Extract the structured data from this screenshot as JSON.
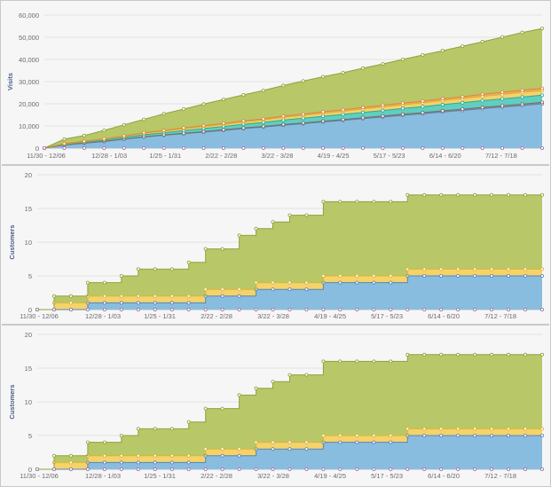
{
  "colors": {
    "base": "#89bde0",
    "base_line": "#5a84b0",
    "l2": "#9b8a86",
    "l2_line": "#7d6b66",
    "l3": "#5fcfc0",
    "l3_line": "#30a898",
    "l4": "#f5d36a",
    "l4_line": "#d8b43a",
    "l5": "#f4a85b",
    "l5_line": "#d9883a",
    "top": "#b8c869",
    "top_line": "#8ea23a",
    "marker_stroke": "#9a6fb0"
  },
  "chart_data": [
    {
      "type": "area",
      "stacked": true,
      "title": "",
      "xlabel": "",
      "ylabel": "Visits",
      "ylim": [
        0,
        60000
      ],
      "yticks": [
        "0",
        "10,000",
        "20,000",
        "30,000",
        "40,000",
        "50,000",
        "60,000"
      ],
      "xtick_labels": [
        "11/30 - 12/06",
        "12/28 - 1/03",
        "1/25 - 1/31",
        "2/22 - 2/28",
        "3/22 - 3/28",
        "4/19 - 4/25",
        "5/17 - 5/23",
        "6/14 - 6/20",
        "7/12 - 7/18"
      ],
      "grid": true,
      "legend": "none",
      "series": [
        {
          "color_key": "base",
          "values": [
            0,
            1400,
            2200,
            3000,
            4000,
            5000,
            5800,
            6500,
            7200,
            8000,
            8800,
            9500,
            10300,
            11000,
            11800,
            12500,
            13300,
            14000,
            14800,
            15500,
            16300,
            17000,
            17800,
            18500,
            19200,
            20000
          ]
        },
        {
          "color_key": "l2",
          "values": [
            0,
            40,
            80,
            100,
            120,
            150,
            180,
            200,
            230,
            260,
            280,
            300,
            330,
            360,
            380,
            400,
            430,
            460,
            480,
            500,
            530,
            560,
            580,
            600,
            630,
            660
          ]
        },
        {
          "color_key": "l3",
          "values": [
            0,
            300,
            400,
            500,
            700,
            900,
            1000,
            1200,
            1400,
            1500,
            1700,
            1800,
            2000,
            2100,
            2200,
            2300,
            2400,
            2500,
            2600,
            2700,
            2800,
            2900,
            3000,
            3100,
            3200,
            3200
          ]
        },
        {
          "color_key": "l4",
          "values": [
            0,
            200,
            300,
            400,
            500,
            600,
            700,
            800,
            900,
            900,
            1000,
            1100,
            1200,
            1300,
            1300,
            1400,
            1500,
            1600,
            1600,
            1700,
            1800,
            1800,
            1900,
            2000,
            2100,
            2100
          ]
        },
        {
          "color_key": "l5",
          "values": [
            0,
            100,
            100,
            200,
            200,
            300,
            300,
            400,
            400,
            500,
            500,
            500,
            600,
            600,
            700,
            700,
            700,
            800,
            800,
            800,
            900,
            900,
            1000,
            1000,
            1000,
            1000
          ]
        },
        {
          "color_key": "top",
          "values": [
            0,
            2000,
            2600,
            3800,
            5000,
            6000,
            7500,
            8500,
            9700,
            10800,
            11700,
            12800,
            13800,
            14900,
            15800,
            16700,
            17700,
            18600,
            19700,
            20800,
            21600,
            22800,
            23700,
            24900,
            26000,
            27000
          ]
        }
      ]
    },
    {
      "type": "area",
      "stacked": true,
      "step": true,
      "title": "",
      "xlabel": "",
      "ylabel": "Customers",
      "ylim": [
        0,
        20
      ],
      "yticks": [
        "0",
        "5",
        "10",
        "15",
        "20"
      ],
      "xtick_labels": [
        "11/30 - 12/06",
        "12/28 - 1/03",
        "1/25 - 1/31",
        "2/22 - 2/28",
        "3/22 - 3/28",
        "4/19 - 4/25",
        "5/17 - 5/23",
        "6/14 - 6/20",
        "7/12 - 7/18"
      ],
      "grid": true,
      "legend": "none",
      "series": [
        {
          "color_key": "base",
          "values": [
            0,
            0,
            0,
            1,
            1,
            1,
            1,
            1,
            1,
            1,
            2,
            2,
            2,
            3,
            3,
            3,
            3,
            4,
            4,
            4,
            4,
            4,
            5,
            5,
            5,
            5,
            5,
            5,
            5,
            5,
            5
          ]
        },
        {
          "color_key": "l4",
          "values": [
            0,
            1,
            1,
            1,
            1,
            1,
            1,
            1,
            1,
            1,
            1,
            1,
            1,
            1,
            1,
            1,
            1,
            1,
            1,
            1,
            1,
            1,
            1,
            1,
            1,
            1,
            1,
            1,
            1,
            1,
            1
          ]
        },
        {
          "color_key": "top",
          "values": [
            0,
            1,
            1,
            2,
            2,
            3,
            4,
            4,
            4,
            5,
            6,
            6,
            8,
            8,
            9,
            10,
            10,
            11,
            11,
            11,
            11,
            11,
            11,
            11,
            11,
            11,
            11,
            11,
            11,
            11,
            11
          ]
        }
      ]
    },
    {
      "type": "area",
      "stacked": true,
      "step": true,
      "title": "",
      "xlabel": "",
      "ylabel": "Customers",
      "ylim": [
        0,
        20
      ],
      "yticks": [
        "0",
        "5",
        "10",
        "15",
        "20"
      ],
      "xtick_labels": [
        "11/30 - 12/06",
        "12/28 - 1/03",
        "1/25 - 1/31",
        "2/22 - 2/28",
        "3/22 - 3/28",
        "4/19 - 4/25",
        "5/17 - 5/23",
        "6/14 - 6/20",
        "7/12 - 7/18"
      ],
      "grid": true,
      "legend": "none",
      "series": [
        {
          "color_key": "base",
          "values": [
            0,
            0,
            0,
            1,
            1,
            1,
            1,
            1,
            1,
            1,
            2,
            2,
            2,
            3,
            3,
            3,
            3,
            4,
            4,
            4,
            4,
            4,
            5,
            5,
            5,
            5,
            5,
            5,
            5,
            5,
            5
          ]
        },
        {
          "color_key": "l4",
          "values": [
            0,
            1,
            1,
            1,
            1,
            1,
            1,
            1,
            1,
            1,
            1,
            1,
            1,
            1,
            1,
            1,
            1,
            1,
            1,
            1,
            1,
            1,
            1,
            1,
            1,
            1,
            1,
            1,
            1,
            1,
            1
          ]
        },
        {
          "color_key": "top",
          "values": [
            0,
            1,
            1,
            2,
            2,
            3,
            4,
            4,
            4,
            5,
            6,
            6,
            8,
            8,
            9,
            10,
            10,
            11,
            11,
            11,
            11,
            11,
            11,
            11,
            11,
            11,
            11,
            11,
            11,
            11,
            11
          ]
        }
      ]
    }
  ]
}
